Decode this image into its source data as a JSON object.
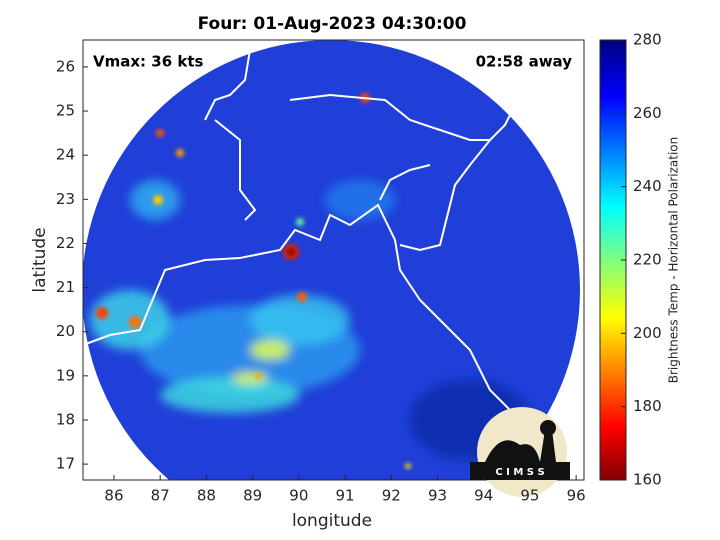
{
  "map": {
    "title": "Four: 01-Aug-2023 04:30:00",
    "annotations": {
      "left": "Vmax: 36 kts",
      "right": "02:58 away"
    },
    "xlabel": "longitude",
    "ylabel": "latitude",
    "xlim": [
      85.33,
      96.17
    ],
    "ylim": [
      16.64,
      26.61
    ],
    "xticks": [
      86,
      87,
      88,
      89,
      90,
      91,
      92,
      93,
      94,
      95,
      96
    ],
    "yticks": [
      17,
      18,
      19,
      20,
      21,
      22,
      23,
      24,
      25,
      26
    ],
    "colorbar": {
      "label": "Brightness Temp - Horizontal Polarization",
      "lim": [
        160,
        280
      ],
      "ticks": [
        160,
        180,
        200,
        220,
        240,
        260,
        280
      ]
    },
    "logo": "C I M S S"
  }
}
